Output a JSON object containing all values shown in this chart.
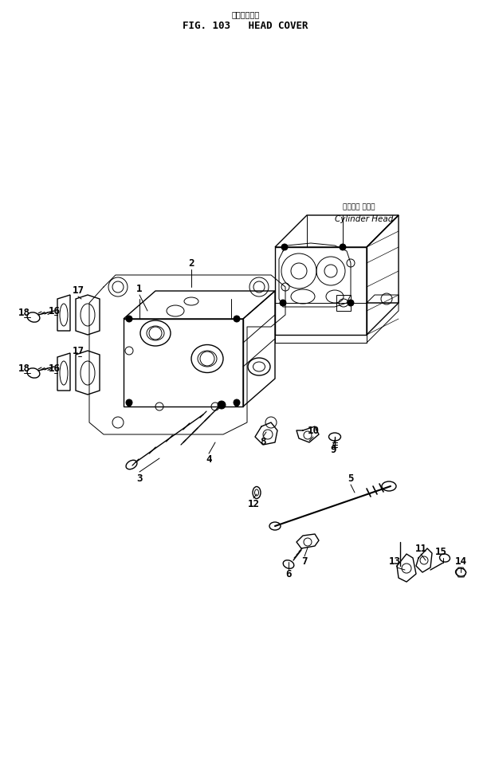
{
  "title_jp": "ヘッドカバー",
  "title_en": "FIG. 103   HEAD COVER",
  "bg_color": "#ffffff",
  "line_color": "#000000",
  "fig_width": 6.16,
  "fig_height": 9.56,
  "dpi": 100,
  "cylinder_head_label_jp": "シリンダ ヘッド",
  "cylinder_head_label_en": "Cylinder Head"
}
